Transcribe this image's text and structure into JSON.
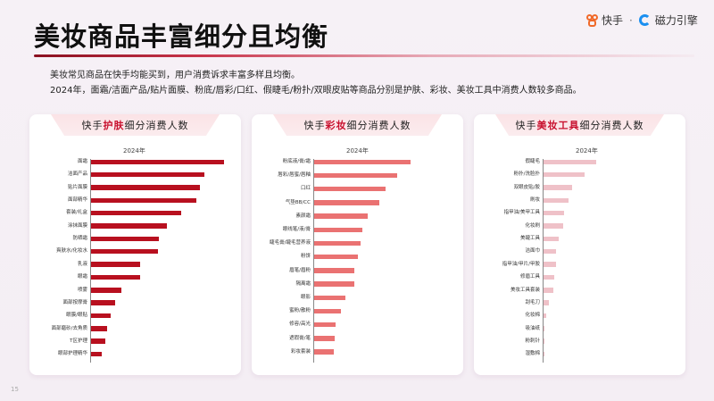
{
  "header": {
    "title": "美妆商品丰富细分且均衡",
    "logo": {
      "brand1": "快手",
      "separator": "·",
      "brand2": "磁力引擎"
    }
  },
  "intro": {
    "line1": "美妆常见商品在快手均能买到，用户消费诉求丰富多样且均衡。",
    "line2": "2024年，面霜/洁面产品/贴片面膜、粉底/唇彩/口红、假睫毛/粉扑/双眼皮贴等商品分别是护肤、彩妆、美妆工具中消费人数较多商品。"
  },
  "page_number": "15",
  "cards": [
    {
      "prefix": "快手",
      "highlight": "护肤",
      "suffix": "细分消费人数",
      "year": "2024年"
    },
    {
      "prefix": "快手",
      "highlight": "彩妆",
      "suffix": "细分消费人数",
      "year": "2024年"
    },
    {
      "prefix": "快手",
      "highlight": "美妆工具",
      "suffix": "细分消费人数",
      "year": "2024年"
    }
  ],
  "colors": {
    "skincare_bar": "#b8101f",
    "makeup_bar": "#ea7272",
    "tools_bar": "#efc1c8",
    "highlight_text": "#c8102e"
  },
  "chart_data": [
    {
      "type": "bar",
      "orientation": "horizontal",
      "title": "快手护肤细分消费人数",
      "legend": "2024年",
      "xlabel": "",
      "ylabel": "",
      "categories": [
        "面霜",
        "洁面产品",
        "贴片面膜",
        "面部精华",
        "套装/礼盒",
        "涂抹面膜",
        "防晒霜",
        "爽肤水/化妆水",
        "乳液",
        "眼霜",
        "喷雾",
        "面部按摩膏",
        "眼膜/眼贴",
        "面部磨砂/去角质",
        "T区护理",
        "眼部护理精华"
      ],
      "values": [
        100,
        85,
        82,
        79,
        68,
        57,
        51,
        50,
        37,
        37,
        23,
        18,
        15,
        12,
        11,
        8
      ]
    },
    {
      "type": "bar",
      "orientation": "horizontal",
      "title": "快手彩妆细分消费人数",
      "legend": "2024年",
      "xlabel": "",
      "ylabel": "",
      "categories": [
        "粉底液/膏/霜",
        "唇彩/唇蜜/唇釉",
        "口红",
        "气垫BB/CC",
        "素颜霜",
        "眼线笔/液/膏",
        "睫毛膏/睫毛营养液",
        "粉饼",
        "眉笔/眉粉",
        "隔离霜",
        "眼影",
        "蜜粉/散粉",
        "修容/高光",
        "遮瑕膏/笔",
        "彩妆套装"
      ],
      "values": [
        100,
        86,
        74,
        68,
        56,
        50,
        48,
        45,
        42,
        42,
        32,
        28,
        22,
        21,
        20
      ]
    },
    {
      "type": "bar",
      "orientation": "horizontal",
      "title": "快手美妆工具细分消费人数",
      "legend": "2024年",
      "xlabel": "",
      "ylabel": "",
      "categories": [
        "假睫毛",
        "粉扑/洗脸扑",
        "双眼皮贴/胶",
        "刷妆",
        "指甲油/美甲工具",
        "化妆刷",
        "美睫工具",
        "洁面巾",
        "指甲油/甲片/甲胶",
        "修眉工具",
        "美妆工具套装",
        "刮毛刀",
        "化妆棉",
        "吸油纸",
        "粉刺针",
        "湿敷棉"
      ],
      "values": [
        100,
        78,
        55,
        47,
        39,
        37,
        28,
        24,
        24,
        20,
        18,
        11,
        5,
        2,
        1,
        1
      ]
    }
  ]
}
